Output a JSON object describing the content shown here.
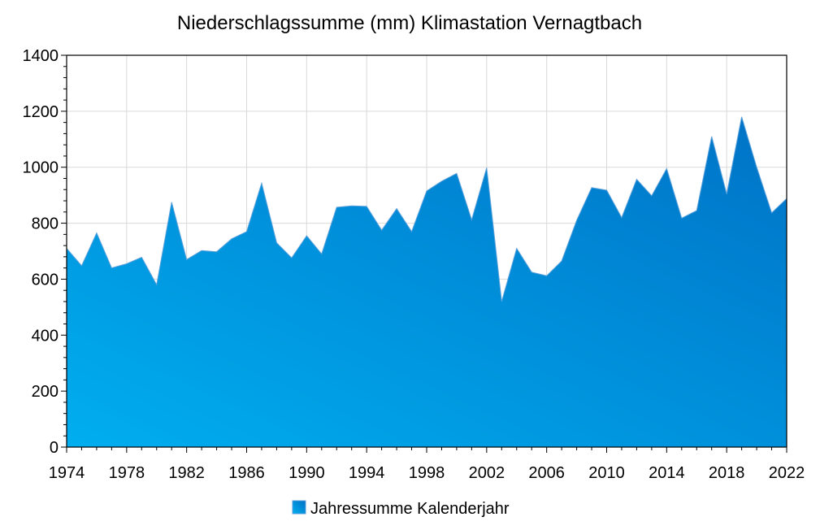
{
  "chart_data": {
    "type": "area",
    "title": "Niederschlagssumme (mm) Klimastation Vernagtbach",
    "xlabel": "",
    "ylabel": "",
    "xlim": [
      1974,
      2022
    ],
    "ylim": [
      0,
      1400
    ],
    "x_ticks": [
      1974,
      1978,
      1982,
      1986,
      1990,
      1994,
      1998,
      2002,
      2006,
      2010,
      2014,
      2018,
      2022
    ],
    "y_ticks": [
      0,
      200,
      400,
      600,
      800,
      1000,
      1200,
      1400
    ],
    "grid": true,
    "legend_position": "bottom",
    "colors": {
      "fill_light": "#00aeef",
      "fill_dark": "#0072c6",
      "outline": "#5aa0dc"
    },
    "series": [
      {
        "name": "Jahressumme Kalenderjahr",
        "x": [
          1974,
          1975,
          1976,
          1977,
          1978,
          1979,
          1980,
          1981,
          1982,
          1983,
          1984,
          1985,
          1986,
          1987,
          1988,
          1989,
          1990,
          1991,
          1992,
          1993,
          1994,
          1995,
          1996,
          1997,
          1998,
          1999,
          2000,
          2001,
          2002,
          2003,
          2004,
          2005,
          2006,
          2007,
          2008,
          2009,
          2010,
          2011,
          2012,
          2013,
          2014,
          2015,
          2016,
          2017,
          2018,
          2019,
          2020,
          2021,
          2022
        ],
        "values": [
          710,
          648,
          765,
          640,
          655,
          678,
          580,
          875,
          670,
          702,
          698,
          744,
          770,
          943,
          730,
          676,
          755,
          690,
          857,
          862,
          860,
          775,
          852,
          770,
          915,
          950,
          978,
          812,
          998,
          520,
          710,
          625,
          612,
          665,
          810,
          927,
          918,
          820,
          957,
          898,
          995,
          818,
          845,
          1110,
          904,
          1180,
          1000,
          837,
          888
        ]
      }
    ]
  }
}
